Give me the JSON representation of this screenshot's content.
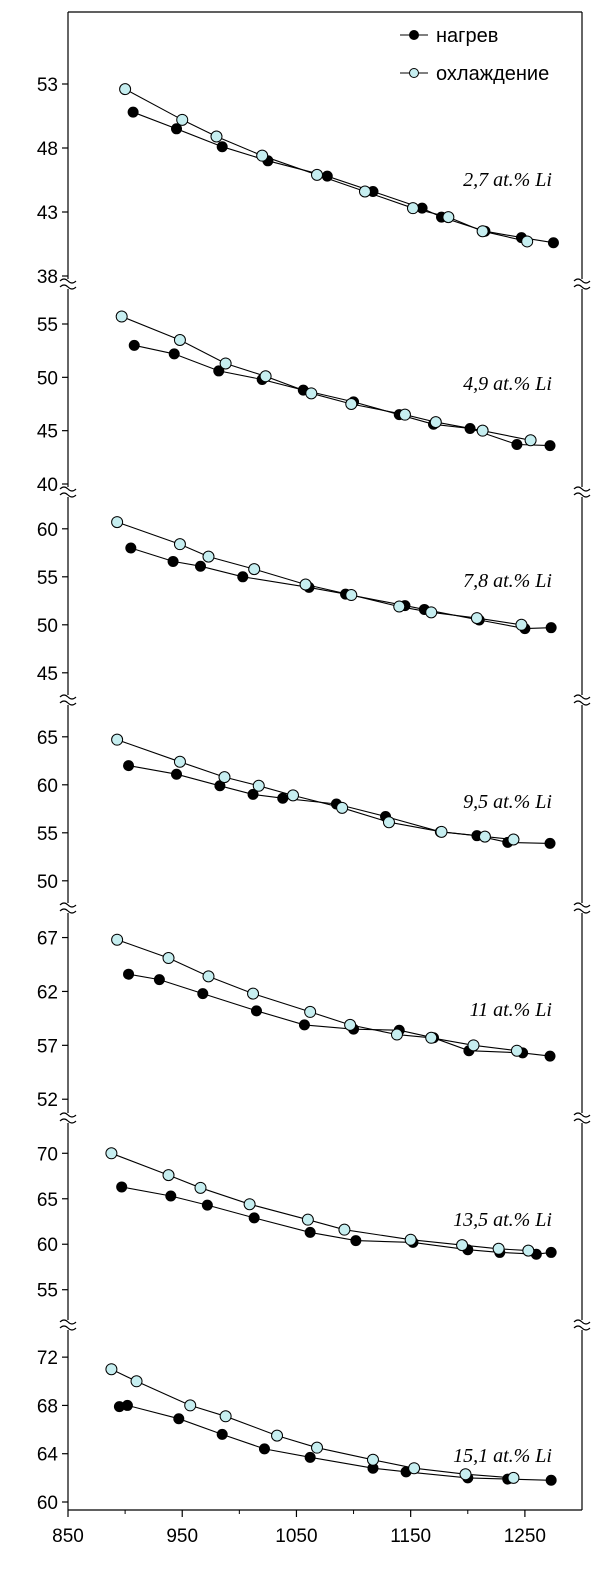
{
  "chart_data": {
    "type": "line",
    "title": "",
    "xlabel": "",
    "ylabel": "",
    "xlim": [
      850,
      1300
    ],
    "x_ticks": [
      850,
      950,
      1050,
      1150,
      1250
    ],
    "legend": {
      "position": "top-right",
      "entries": [
        "нагрев",
        "охлаждение"
      ]
    },
    "series_styles": {
      "нагрев": {
        "marker_fill": "#000000",
        "marker_stroke": "#000000"
      },
      "охлаждение": {
        "marker_fill": "#c6eef0",
        "marker_stroke": "#000000"
      }
    },
    "panels": [
      {
        "label": "2,7 at.% Li",
        "ylim": [
          38,
          58
        ],
        "y_ticks": [
          38,
          43,
          48,
          53
        ],
        "series": [
          {
            "name": "нагрев",
            "x": [
              907,
              945,
              985,
              1025,
              1077,
              1117,
              1160,
              1177,
              1215,
              1247,
              1275
            ],
            "y": [
              50.8,
              49.5,
              48.1,
              47.0,
              45.8,
              44.6,
              43.3,
              42.6,
              41.5,
              41.0,
              40.6
            ]
          },
          {
            "name": "охлаждение",
            "x": [
              900,
              950,
              980,
              1020,
              1068,
              1110,
              1152,
              1183,
              1213,
              1252
            ],
            "y": [
              52.6,
              50.2,
              48.9,
              47.4,
              45.9,
              44.6,
              43.3,
              42.6,
              41.5,
              40.7
            ]
          }
        ]
      },
      {
        "label": "4,9 at.% Li",
        "ylim": [
          40,
          58
        ],
        "y_ticks": [
          40,
          45,
          50,
          55
        ],
        "series": [
          {
            "name": "нагрев",
            "x": [
              908,
              943,
              982,
              1020,
              1056,
              1100,
              1140,
              1170,
              1202,
              1243,
              1272
            ],
            "y": [
              53.0,
              52.2,
              50.6,
              49.8,
              48.8,
              47.7,
              46.5,
              45.6,
              45.2,
              43.7,
              43.6
            ]
          },
          {
            "name": "охлаждение",
            "x": [
              897,
              948,
              988,
              1023,
              1063,
              1098,
              1145,
              1172,
              1213,
              1255
            ],
            "y": [
              55.7,
              53.5,
              51.3,
              50.1,
              48.5,
              47.5,
              46.5,
              45.8,
              45.0,
              44.1
            ]
          }
        ]
      },
      {
        "label": "7,8 at.% Li",
        "ylim": [
          43,
          63
        ],
        "y_ticks": [
          45,
          50,
          55,
          60
        ],
        "series": [
          {
            "name": "нагрев",
            "x": [
              905,
              942,
              966,
              1003,
              1061,
              1093,
              1145,
              1162,
              1210,
              1250,
              1273
            ],
            "y": [
              58.0,
              56.6,
              56.1,
              55.0,
              53.9,
              53.2,
              52.0,
              51.6,
              50.5,
              49.6,
              49.7
            ]
          },
          {
            "name": "охлаждение",
            "x": [
              893,
              948,
              973,
              1013,
              1058,
              1098,
              1140,
              1168,
              1208,
              1247
            ],
            "y": [
              60.7,
              58.4,
              57.1,
              55.8,
              54.2,
              53.1,
              51.9,
              51.3,
              50.7,
              50.0
            ]
          }
        ]
      },
      {
        "label": "9,5 at.% Li",
        "ylim": [
          48,
          68
        ],
        "y_ticks": [
          50,
          55,
          60,
          65
        ],
        "series": [
          {
            "name": "нагрев",
            "x": [
              903,
              945,
              983,
              1012,
              1038,
              1085,
              1128,
              1176,
              1208,
              1235,
              1272
            ],
            "y": [
              62.0,
              61.1,
              59.9,
              59.0,
              58.6,
              58.0,
              56.7,
              55.1,
              54.7,
              54.0,
              53.9
            ]
          },
          {
            "name": "охлаждение",
            "x": [
              893,
              948,
              987,
              1017,
              1047,
              1090,
              1131,
              1177,
              1215,
              1240
            ],
            "y": [
              64.7,
              62.4,
              60.8,
              59.9,
              58.9,
              57.6,
              56.1,
              55.1,
              54.6,
              54.3
            ]
          }
        ]
      },
      {
        "label": "11 at.% Li",
        "ylim": [
          51,
          69
        ],
        "y_ticks": [
          52,
          57,
          62,
          67
        ],
        "series": [
          {
            "name": "нагрев",
            "x": [
              903,
              930,
              968,
              1015,
              1057,
              1100,
              1140,
              1170,
              1201,
              1248,
              1272
            ],
            "y": [
              63.6,
              63.1,
              61.8,
              60.2,
              58.9,
              58.5,
              58.4,
              57.7,
              56.5,
              56.3,
              56.0
            ]
          },
          {
            "name": "охлаждение",
            "x": [
              893,
              938,
              973,
              1012,
              1062,
              1097,
              1138,
              1168,
              1205,
              1243
            ],
            "y": [
              66.8,
              65.1,
              63.4,
              61.8,
              60.1,
              58.9,
              58.0,
              57.7,
              57.0,
              56.5
            ]
          }
        ]
      },
      {
        "label": "13,5 at.% Li",
        "ylim": [
          52,
          73
        ],
        "y_ticks": [
          55,
          60,
          65,
          70
        ],
        "series": [
          {
            "name": "нагрев",
            "x": [
              897,
              940,
              972,
              1013,
              1062,
              1102,
              1152,
              1200,
              1228,
              1260,
              1273
            ],
            "y": [
              66.3,
              65.3,
              64.3,
              62.9,
              61.3,
              60.4,
              60.2,
              59.4,
              59.1,
              58.9,
              59.1
            ]
          },
          {
            "name": "охлаждение",
            "x": [
              888,
              938,
              966,
              1009,
              1060,
              1092,
              1150,
              1195,
              1227,
              1253
            ],
            "y": [
              70.0,
              67.6,
              66.2,
              64.4,
              62.7,
              61.6,
              60.5,
              59.9,
              59.5,
              59.3
            ]
          }
        ]
      },
      {
        "label": "15,1 at.% Li",
        "ylim": [
          60,
          74
        ],
        "y_ticks": [
          60,
          64,
          68,
          72
        ],
        "series": [
          {
            "name": "нагрев",
            "x": [
              895,
              902,
              947,
              985,
              1022,
              1062,
              1117,
              1146,
              1200,
              1235,
              1273
            ],
            "y": [
              67.9,
              68.0,
              66.9,
              65.6,
              64.4,
              63.7,
              62.8,
              62.5,
              62.0,
              61.9,
              61.8
            ]
          },
          {
            "name": "охлаждение",
            "x": [
              888,
              910,
              957,
              988,
              1033,
              1068,
              1117,
              1153,
              1198,
              1240
            ],
            "y": [
              71.0,
              70.0,
              68.0,
              67.1,
              65.5,
              64.5,
              63.5,
              62.8,
              62.3,
              62.0
            ]
          }
        ]
      }
    ]
  }
}
